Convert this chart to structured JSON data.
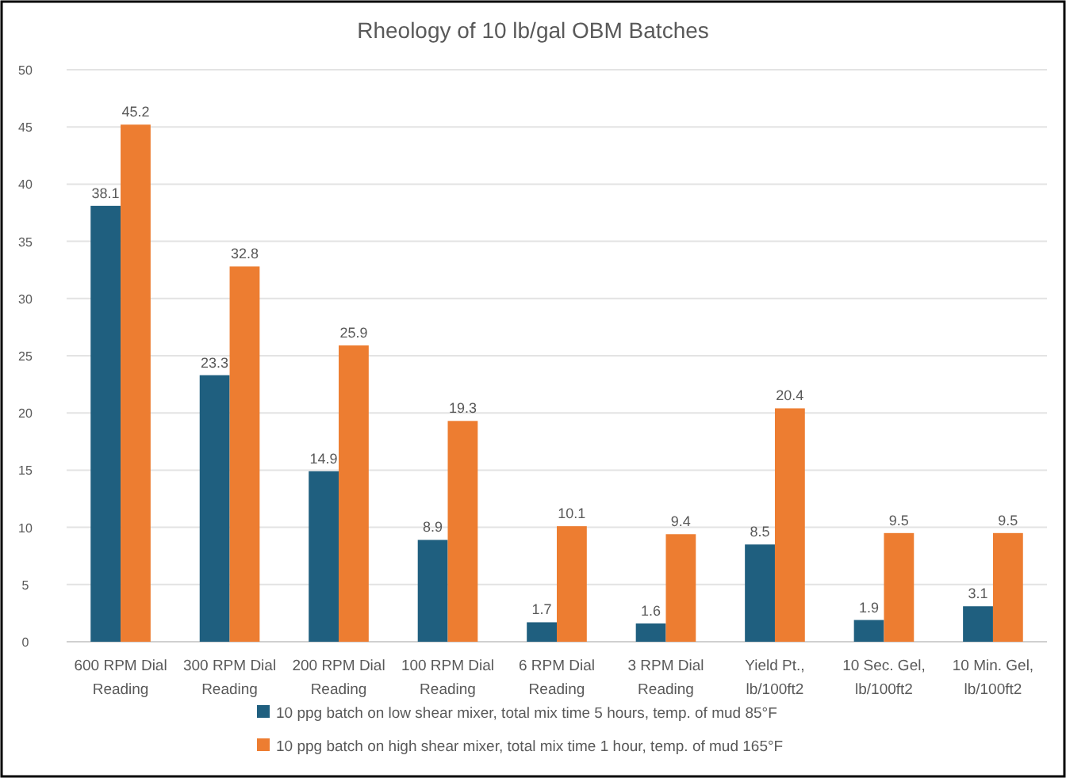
{
  "chart_data": {
    "type": "bar",
    "title": "Rheology of 10 lb/gal OBM Batches",
    "categories": [
      "600 RPM Dial Reading",
      "300 RPM Dial Reading",
      "200 RPM Dial Reading",
      "100 RPM Dial Reading",
      "6 RPM Dial Reading",
      "3 RPM Dial Reading",
      "Yield Pt., lb/100ft2",
      "10 Sec. Gel, lb/100ft2",
      "10 Min. Gel, lb/100ft2"
    ],
    "series": [
      {
        "name": "10 ppg batch on low shear mixer, total mix time 5 hours, temp. of mud 85°F",
        "color": "#1f5f7f",
        "values": [
          38.1,
          23.3,
          14.9,
          8.9,
          1.7,
          1.6,
          8.5,
          1.9,
          3.1
        ]
      },
      {
        "name": "10 ppg batch on high shear mixer, total mix time 1 hour, temp. of mud 165°F",
        "color": "#ed7d31",
        "values": [
          45.2,
          32.8,
          25.9,
          19.3,
          10.1,
          9.4,
          20.4,
          9.5,
          9.5
        ]
      }
    ],
    "ylim": [
      0,
      50
    ],
    "yticks": [
      0,
      5,
      10,
      15,
      20,
      25,
      30,
      35,
      40,
      45,
      50
    ],
    "grid": "y",
    "legend": "bottom",
    "data_labels": true
  }
}
